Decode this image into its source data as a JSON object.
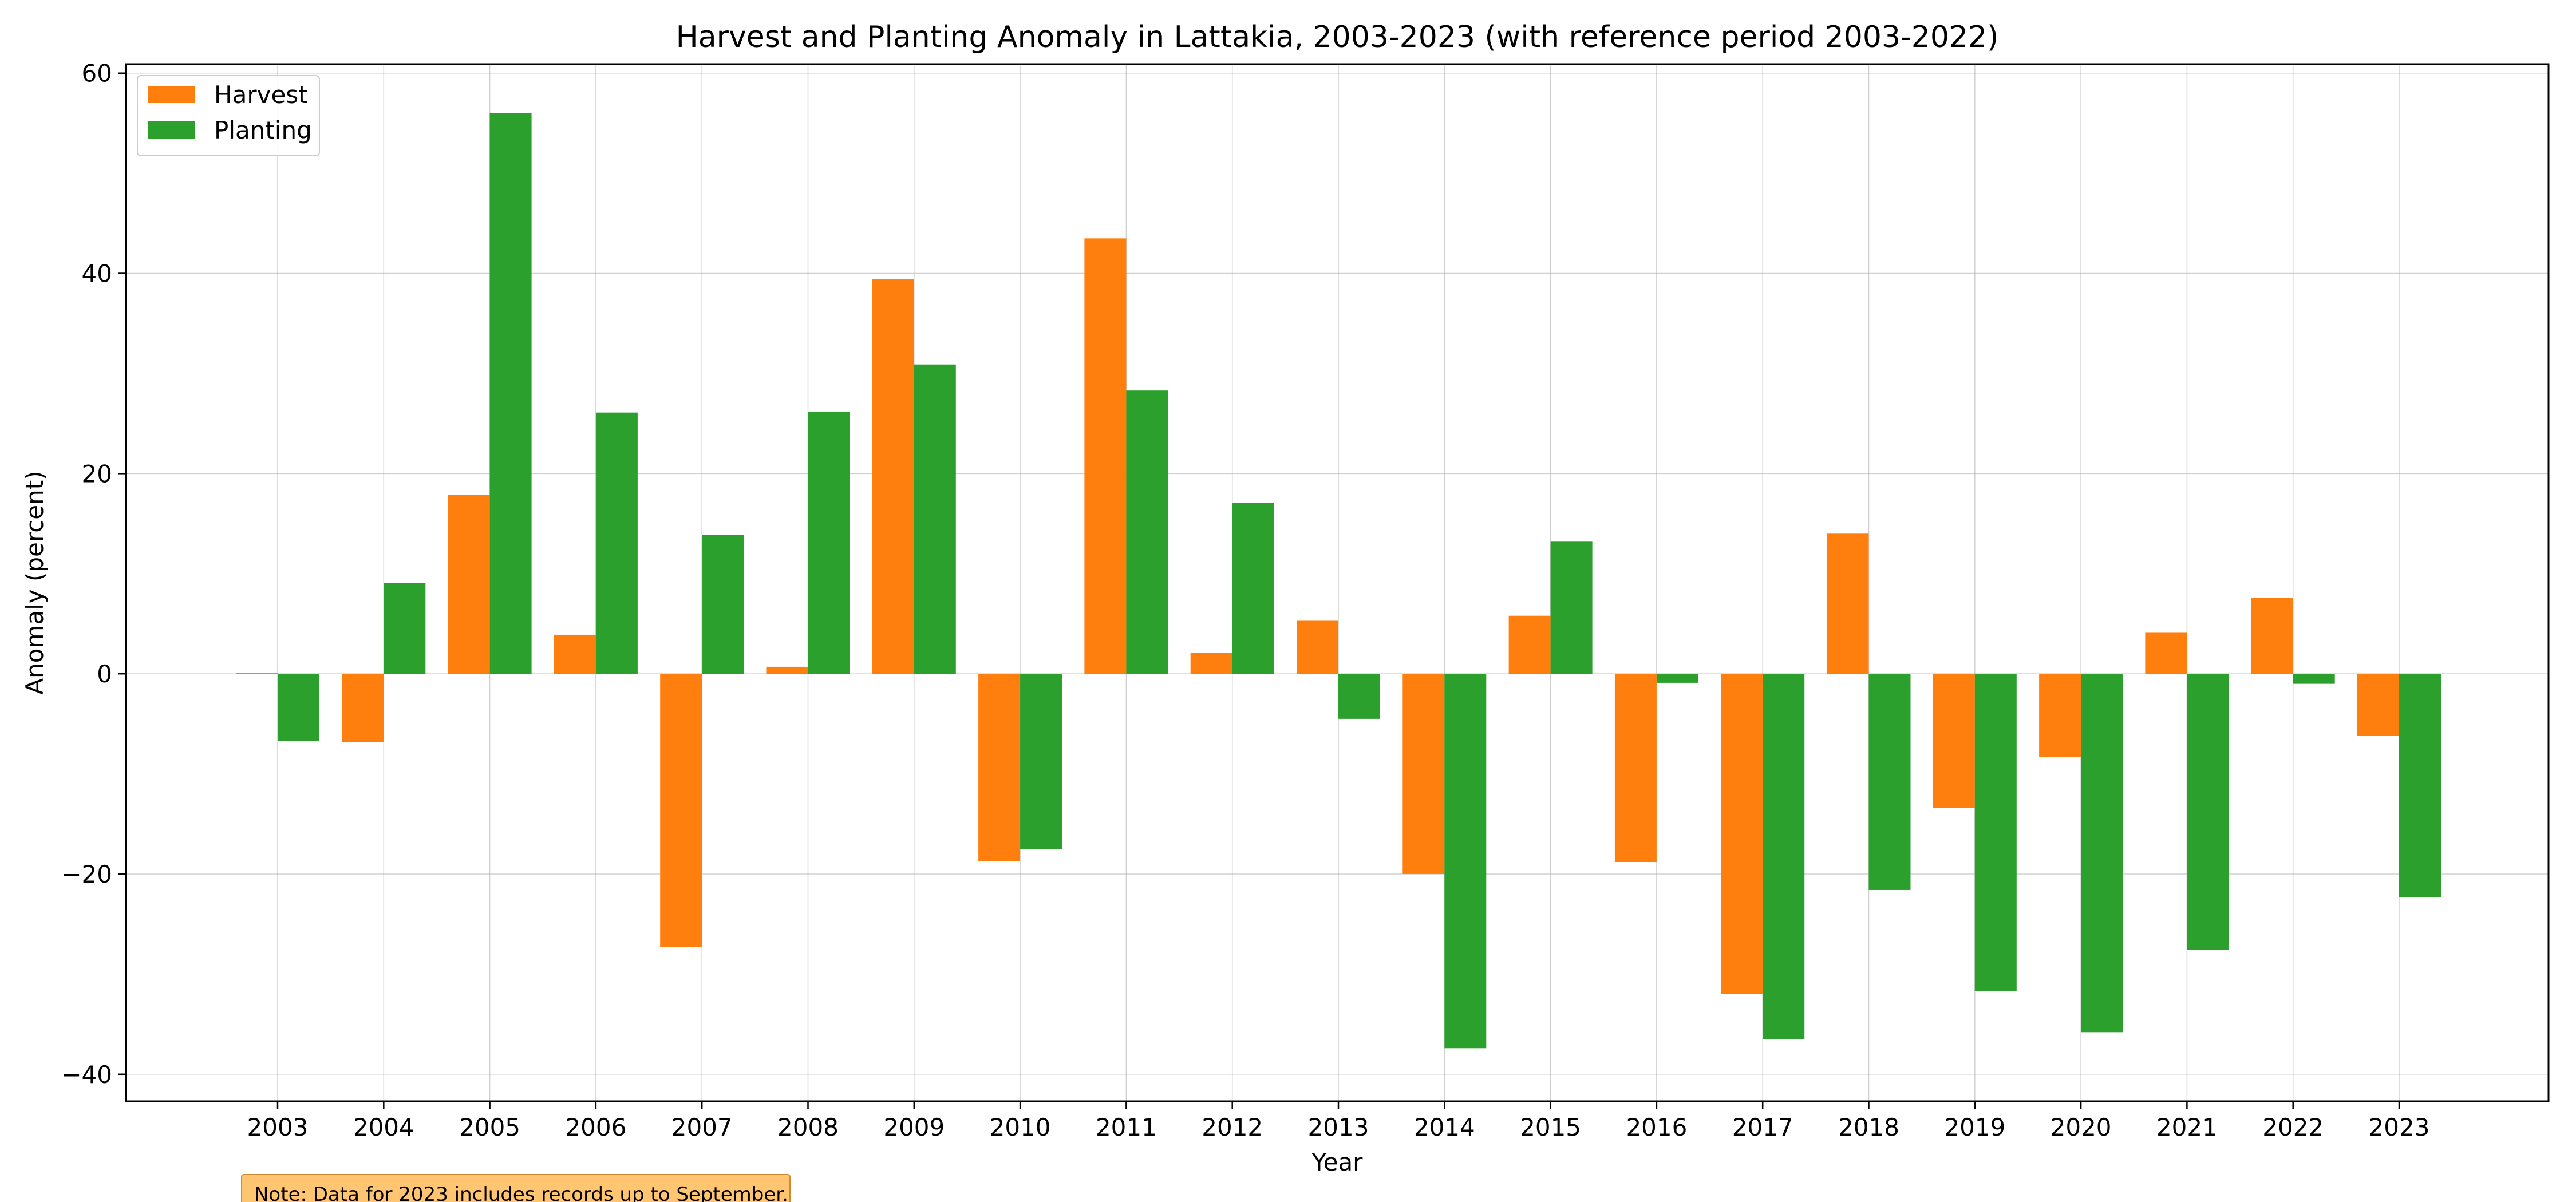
{
  "chart_data": {
    "type": "bar",
    "title": "Harvest and Planting Anomaly in Lattakia, 2003-2023 (with reference period 2003-2022)",
    "xlabel": "Year",
    "ylabel": "Anomaly (percent)",
    "categories": [
      "2003",
      "2004",
      "2005",
      "2006",
      "2007",
      "2008",
      "2009",
      "2010",
      "2011",
      "2012",
      "2013",
      "2014",
      "2015",
      "2016",
      "2017",
      "2018",
      "2019",
      "2020",
      "2021",
      "2022",
      "2023"
    ],
    "series": [
      {
        "name": "Harvest",
        "color": "#ff7f0e",
        "values": [
          0.1,
          -6.8,
          17.9,
          3.9,
          -27.3,
          0.7,
          39.4,
          -18.7,
          43.5,
          2.1,
          5.3,
          -20.0,
          5.8,
          -18.8,
          -32.0,
          14.0,
          -13.4,
          -8.3,
          4.1,
          7.6,
          -6.2
        ]
      },
      {
        "name": "Planting",
        "color": "#2ca02c",
        "values": [
          -6.7,
          9.1,
          56.0,
          26.1,
          13.9,
          26.2,
          30.9,
          -17.5,
          28.3,
          17.1,
          -4.5,
          -37.4,
          13.2,
          -0.9,
          -36.5,
          -21.6,
          -31.7,
          -35.8,
          -27.6,
          -1.0,
          -22.3
        ]
      }
    ],
    "yticks": [
      -40,
      -20,
      0,
      20,
      40,
      60
    ],
    "ytick_labels": [
      "−40",
      "−20",
      "0",
      "20",
      "40",
      "60"
    ],
    "ylim": [
      -42.7,
      60.9
    ],
    "grid": true,
    "legend_position": "top-left",
    "annotation": "Note: Data for 2023 includes records up to September."
  }
}
